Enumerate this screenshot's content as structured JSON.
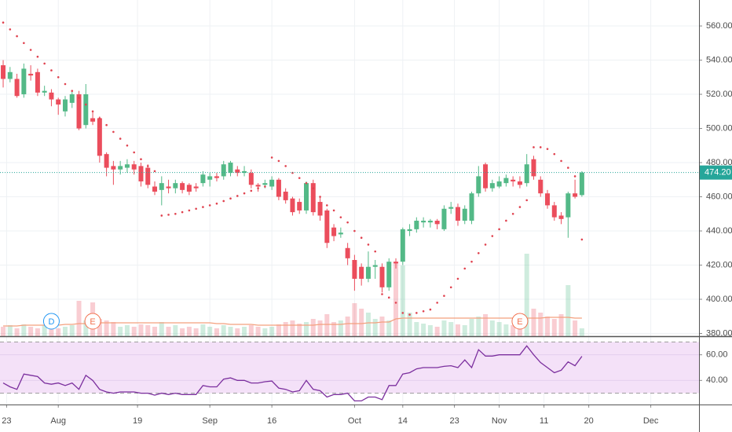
{
  "chart_data": {
    "type": "candlestick",
    "xlim": [
      -0.46,
      101
    ],
    "xticks": [
      {
        "value": 0.5,
        "label": "23"
      },
      {
        "value": 8,
        "label": "Aug"
      },
      {
        "value": 19.5,
        "label": "19"
      },
      {
        "value": 30,
        "label": "Sep"
      },
      {
        "value": 39,
        "label": "16"
      },
      {
        "value": 51,
        "label": "Oct"
      },
      {
        "value": 58,
        "label": "14"
      },
      {
        "value": 65.5,
        "label": "23"
      },
      {
        "value": 72,
        "label": "Nov"
      },
      {
        "value": 78.5,
        "label": "11"
      },
      {
        "value": 85,
        "label": "20"
      },
      {
        "value": 94,
        "label": "Dec"
      }
    ],
    "ylim": [
      378.4,
      575.2
    ],
    "yticks": [
      {
        "value": 380,
        "label": "380.00"
      },
      {
        "value": 400,
        "label": "400.00"
      },
      {
        "value": 420,
        "label": "420.00"
      },
      {
        "value": 440,
        "label": "440.00"
      },
      {
        "value": 460,
        "label": "460.00"
      },
      {
        "value": 480,
        "label": "480.00"
      },
      {
        "value": 500,
        "label": "500.00"
      },
      {
        "value": 520,
        "label": "520.00"
      },
      {
        "value": 540,
        "label": "540.00"
      },
      {
        "value": 560,
        "label": "560.00"
      }
    ],
    "grid": true,
    "up_color": "#53b987",
    "down_color": "#eb4d5c",
    "open": [
      537,
      529,
      529,
      520,
      532,
      533,
      521,
      521,
      517,
      510,
      515,
      520,
      502,
      506,
      506,
      485,
      478,
      476,
      477,
      479,
      478,
      477,
      466,
      464,
      466,
      465,
      468,
      467,
      466,
      468,
      470,
      472,
      472,
      474,
      476,
      474,
      474,
      467,
      467,
      466,
      470,
      463,
      459,
      457,
      452,
      468,
      457,
      452,
      442,
      438,
      430,
      423,
      419,
      412,
      419,
      419,
      407,
      422,
      422,
      440,
      441,
      445,
      445,
      446,
      441,
      453,
      454,
      446,
      446,
      462,
      479,
      465,
      466,
      468,
      470,
      469,
      468,
      482,
      470,
      462,
      455,
      449,
      448,
      462,
      461
    ],
    "high": [
      540,
      536,
      532,
      538,
      537,
      535,
      525,
      523,
      518,
      519,
      522,
      522,
      526,
      510,
      507,
      486,
      481,
      481,
      482,
      481,
      480,
      479,
      469,
      472,
      470,
      470,
      469,
      468,
      468,
      475,
      474,
      474,
      481,
      481,
      478,
      478,
      476,
      468,
      470,
      472,
      471,
      465,
      460,
      459,
      469,
      470,
      460,
      453,
      444,
      442,
      433,
      426,
      421,
      428,
      423,
      421,
      424,
      424,
      442,
      444,
      448,
      448,
      447,
      447,
      455,
      457,
      456,
      455,
      463,
      478,
      480,
      470,
      472,
      473,
      472,
      472,
      485,
      484,
      472,
      464,
      457,
      451,
      463,
      470,
      475
    ],
    "low": [
      524,
      527,
      518,
      518,
      528,
      519,
      519,
      513,
      508,
      507,
      512,
      499,
      500,
      502,
      480,
      472,
      467,
      473,
      474,
      473,
      466,
      465,
      461,
      455,
      462,
      462,
      462,
      461,
      463,
      466,
      466,
      469,
      470,
      472,
      472,
      472,
      465,
      463,
      465,
      464,
      458,
      456,
      449,
      450,
      450,
      449,
      446,
      430,
      434,
      436,
      420,
      405,
      408,
      410,
      412,
      404,
      405,
      418,
      420,
      437,
      439,
      442,
      442,
      441,
      440,
      450,
      443,
      444,
      444,
      460,
      463,
      463,
      465,
      466,
      466,
      465,
      466,
      470,
      460,
      453,
      446,
      444,
      436,
      459,
      460
    ],
    "close": [
      529,
      533,
      519,
      535,
      531,
      521,
      522,
      517,
      514,
      517,
      520,
      500,
      520,
      504,
      484,
      477,
      476,
      478,
      479,
      476,
      469,
      467,
      463,
      468,
      465,
      468,
      464,
      463,
      465,
      473,
      472,
      471,
      479,
      480,
      474,
      475,
      467,
      466,
      468,
      470,
      460,
      458,
      451,
      452,
      468,
      451,
      449,
      433,
      437,
      439,
      424,
      412,
      412,
      419,
      420,
      407,
      422,
      421,
      441,
      441,
      446,
      446,
      446,
      444,
      453,
      454,
      446,
      453,
      462,
      472,
      465,
      468,
      469,
      471,
      469,
      467,
      479,
      472,
      462,
      455,
      448,
      447,
      462,
      460,
      474.2
    ],
    "last_price": {
      "value": 474.2,
      "label": "474.20"
    },
    "last_price_color": "#26a69a",
    "sar": [
      562,
      558,
      554,
      550,
      546,
      542,
      538,
      534,
      530,
      526,
      522,
      518,
      514,
      510,
      506,
      502,
      498,
      494,
      490,
      486,
      482,
      478,
      475,
      449,
      449.5,
      450,
      451,
      452,
      453,
      454,
      455,
      456,
      457.5,
      459,
      460.5,
      462,
      463.5,
      465,
      466,
      483,
      481,
      478,
      474,
      471,
      468,
      465,
      460,
      455,
      452,
      448,
      445,
      440,
      436,
      432,
      428,
      403,
      401,
      398,
      392,
      391,
      392,
      393,
      394,
      398,
      402,
      407,
      412,
      418,
      422,
      427,
      432,
      437,
      441,
      446,
      450,
      454,
      458,
      489,
      489,
      488,
      485,
      481,
      477,
      472,
      435
    ],
    "sar_color": "#e0424f",
    "volume": [
      12,
      14,
      10,
      15,
      12,
      10,
      14,
      12,
      10,
      12,
      14,
      45,
      20,
      43,
      22,
      20,
      18,
      12,
      14,
      12,
      15,
      14,
      12,
      18,
      12,
      14,
      10,
      12,
      10,
      15,
      12,
      10,
      14,
      12,
      10,
      12,
      14,
      12,
      10,
      12,
      15,
      18,
      20,
      16,
      18,
      22,
      20,
      28,
      18,
      20,
      25,
      42,
      35,
      30,
      22,
      25,
      20,
      95,
      90,
      30,
      18,
      16,
      14,
      12,
      20,
      18,
      15,
      14,
      22,
      25,
      28,
      20,
      18,
      15,
      14,
      16,
      105,
      35,
      30,
      25,
      22,
      28,
      65,
      20,
      10
    ],
    "volume_ma": [
      13,
      13,
      13,
      14,
      14,
      14,
      14,
      14,
      14,
      15,
      15,
      16,
      16,
      17,
      17,
      17,
      17,
      17,
      17,
      17,
      17,
      17,
      17,
      17,
      17,
      17,
      17,
      17,
      17,
      17,
      17,
      16,
      16,
      15,
      15,
      15,
      15,
      14,
      14,
      14,
      14,
      14,
      14,
      14,
      14,
      14,
      15,
      15,
      15,
      15,
      16,
      16,
      16,
      17,
      17,
      18,
      18,
      22,
      23,
      23,
      23,
      23,
      23,
      23,
      23,
      23,
      23,
      23,
      23,
      23,
      23,
      23,
      23,
      23,
      23,
      23,
      23,
      23,
      23,
      24,
      24,
      24,
      24,
      23,
      23
    ],
    "volume_ma_color": "#f4a07e",
    "events": [
      {
        "label": "D",
        "at": 7,
        "color": "#2196f3"
      },
      {
        "label": "E",
        "at": 13,
        "color": "#f2704e"
      },
      {
        "label": "E",
        "at": 75,
        "color": "#f2704e"
      }
    ],
    "rsi": {
      "values": [
        38,
        35,
        33,
        45,
        44,
        43,
        38,
        37,
        38,
        36,
        38,
        33,
        44,
        40,
        33,
        31,
        30,
        31,
        31,
        31,
        30,
        30,
        28.5,
        30,
        29,
        30,
        29,
        29,
        29,
        36,
        35,
        35,
        41,
        42,
        40,
        40,
        38,
        38,
        39,
        39.5,
        34,
        33,
        31,
        32,
        40,
        33,
        32,
        27,
        29,
        29,
        30,
        24,
        24,
        27,
        27,
        25,
        36,
        36,
        45,
        46,
        49,
        50,
        50,
        50,
        51,
        51.5,
        50,
        56,
        50,
        64,
        59,
        59,
        60,
        60,
        60,
        60,
        67,
        60,
        54,
        50,
        46,
        48,
        54.5,
        51.5,
        58.8
      ],
      "ylim": [
        21.2,
        73.9
      ],
      "yticks": [
        {
          "value": 40,
          "label": "40.00"
        },
        {
          "value": 60,
          "label": "60.00"
        }
      ],
      "bands": [
        30,
        70
      ],
      "color": "#7b2f9e",
      "fill": "#f4e1f8"
    }
  }
}
